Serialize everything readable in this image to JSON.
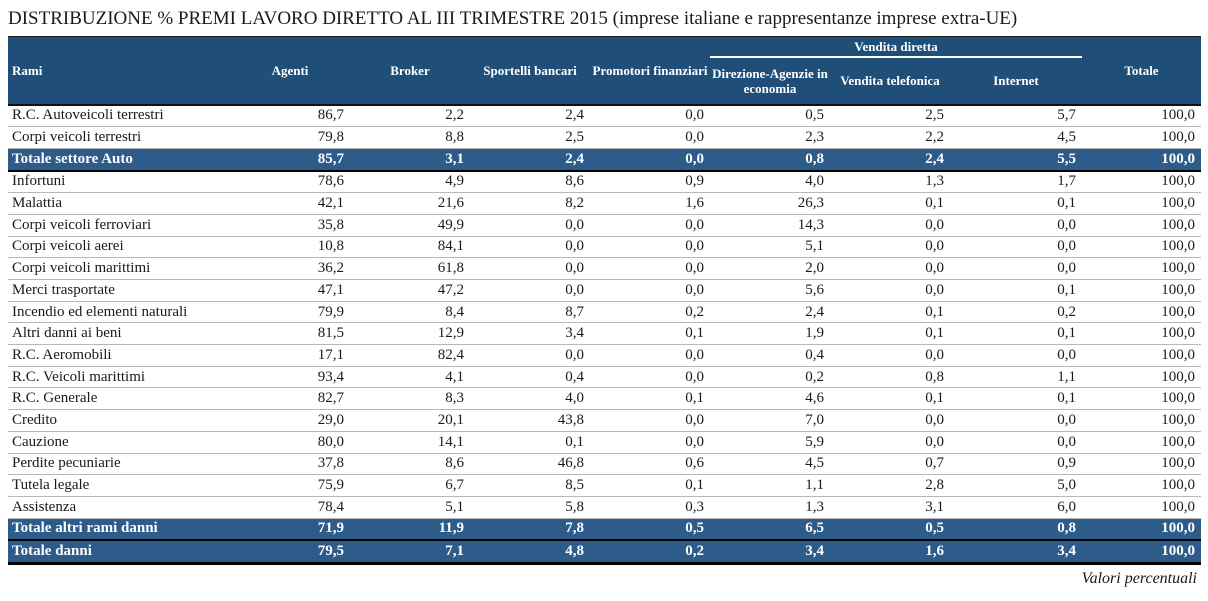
{
  "title": "DISTRIBUZIONE % PREMI LAVORO DIRETTO AL III TRIMESTRE 2015 (imprese italiane e rappresentanze imprese extra-UE)",
  "footnote": "Valori percentuali",
  "colors": {
    "header_bg": "#1F4E79",
    "total_row_bg": "#2E5C8A",
    "header_text": "#ffffff",
    "body_text": "#1a1a1a",
    "row_divider": "#b8b8b8",
    "heavy_border": "#000000"
  },
  "table": {
    "header": {
      "rami": "Rami",
      "agenti": "Agenti",
      "broker": "Broker",
      "sportelli_bancari": "Sportelli bancari",
      "promotori_finanziari": "Promotori finanziari",
      "vendita_diretta_group": "Vendita diretta",
      "direzione_agenzie": "Direzione-Agenzie in economia",
      "vendita_telefonica": "Vendita telefonica",
      "internet": "Internet",
      "totale": "Totale"
    },
    "rows": [
      {
        "label": "R.C. Autoveicoli terrestri",
        "type": "normal",
        "values": [
          "86,7",
          "2,2",
          "2,4",
          "0,0",
          "0,5",
          "2,5",
          "5,7",
          "100,0"
        ]
      },
      {
        "label": "Corpi veicoli terrestri",
        "type": "normal",
        "values": [
          "79,8",
          "8,8",
          "2,5",
          "0,0",
          "2,3",
          "2,2",
          "4,5",
          "100,0"
        ]
      },
      {
        "label": "Totale settore Auto",
        "type": "total",
        "values": [
          "85,7",
          "3,1",
          "2,4",
          "0,0",
          "0,8",
          "2,4",
          "5,5",
          "100,0"
        ]
      },
      {
        "label": "Infortuni",
        "type": "normal",
        "values": [
          "78,6",
          "4,9",
          "8,6",
          "0,9",
          "4,0",
          "1,3",
          "1,7",
          "100,0"
        ]
      },
      {
        "label": "Malattia",
        "type": "normal",
        "values": [
          "42,1",
          "21,6",
          "8,2",
          "1,6",
          "26,3",
          "0,1",
          "0,1",
          "100,0"
        ]
      },
      {
        "label": "Corpi veicoli ferroviari",
        "type": "normal",
        "values": [
          "35,8",
          "49,9",
          "0,0",
          "0,0",
          "14,3",
          "0,0",
          "0,0",
          "100,0"
        ]
      },
      {
        "label": "Corpi veicoli aerei",
        "type": "normal",
        "values": [
          "10,8",
          "84,1",
          "0,0",
          "0,0",
          "5,1",
          "0,0",
          "0,0",
          "100,0"
        ]
      },
      {
        "label": "Corpi veicoli marittimi",
        "type": "normal",
        "values": [
          "36,2",
          "61,8",
          "0,0",
          "0,0",
          "2,0",
          "0,0",
          "0,0",
          "100,0"
        ]
      },
      {
        "label": "Merci trasportate",
        "type": "normal",
        "values": [
          "47,1",
          "47,2",
          "0,0",
          "0,0",
          "5,6",
          "0,0",
          "0,1",
          "100,0"
        ]
      },
      {
        "label": "Incendio ed elementi naturali",
        "type": "normal",
        "values": [
          "79,9",
          "8,4",
          "8,7",
          "0,2",
          "2,4",
          "0,1",
          "0,2",
          "100,0"
        ]
      },
      {
        "label": "Altri danni ai beni",
        "type": "normal",
        "values": [
          "81,5",
          "12,9",
          "3,4",
          "0,1",
          "1,9",
          "0,1",
          "0,1",
          "100,0"
        ]
      },
      {
        "label": "R.C. Aeromobili",
        "type": "normal",
        "values": [
          "17,1",
          "82,4",
          "0,0",
          "0,0",
          "0,4",
          "0,0",
          "0,0",
          "100,0"
        ]
      },
      {
        "label": "R.C. Veicoli marittimi",
        "type": "normal",
        "values": [
          "93,4",
          "4,1",
          "0,4",
          "0,0",
          "0,2",
          "0,8",
          "1,1",
          "100,0"
        ]
      },
      {
        "label": "R.C. Generale",
        "type": "normal",
        "values": [
          "82,7",
          "8,3",
          "4,0",
          "0,1",
          "4,6",
          "0,1",
          "0,1",
          "100,0"
        ]
      },
      {
        "label": "Credito",
        "type": "normal",
        "values": [
          "29,0",
          "20,1",
          "43,8",
          "0,0",
          "7,0",
          "0,0",
          "0,0",
          "100,0"
        ]
      },
      {
        "label": "Cauzione",
        "type": "normal",
        "values": [
          "80,0",
          "14,1",
          "0,1",
          "0,0",
          "5,9",
          "0,0",
          "0,0",
          "100,0"
        ]
      },
      {
        "label": "Perdite pecuniarie",
        "type": "normal",
        "values": [
          "37,8",
          "8,6",
          "46,8",
          "0,6",
          "4,5",
          "0,7",
          "0,9",
          "100,0"
        ]
      },
      {
        "label": "Tutela legale",
        "type": "normal",
        "values": [
          "75,9",
          "6,7",
          "8,5",
          "0,1",
          "1,1",
          "2,8",
          "5,0",
          "100,0"
        ]
      },
      {
        "label": "Assistenza",
        "type": "normal",
        "values": [
          "78,4",
          "5,1",
          "5,8",
          "0,3",
          "1,3",
          "3,1",
          "6,0",
          "100,0"
        ]
      },
      {
        "label": "Totale altri rami danni",
        "type": "total",
        "values": [
          "71,9",
          "11,9",
          "7,8",
          "0,5",
          "6,5",
          "0,5",
          "0,8",
          "100,0"
        ]
      },
      {
        "label": "Totale danni",
        "type": "total",
        "values": [
          "79,5",
          "7,1",
          "4,8",
          "0,2",
          "3,4",
          "1,6",
          "3,4",
          "100,0"
        ]
      }
    ]
  }
}
